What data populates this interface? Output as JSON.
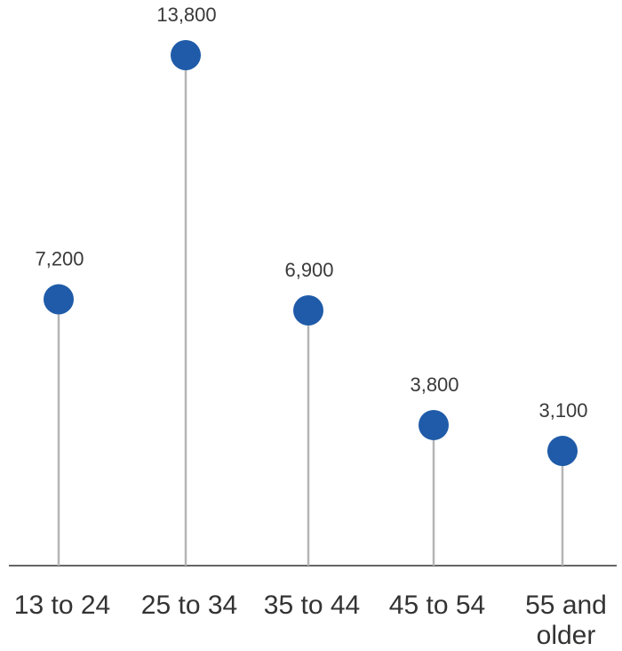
{
  "chart_data": {
    "type": "lollipop",
    "categories": [
      "13 to 24",
      "25 to 34",
      "35 to 44",
      "45 to 54",
      "55 and older"
    ],
    "category_label_lines": [
      [
        "13 to 24"
      ],
      [
        "25 to 34"
      ],
      [
        "35 to 44"
      ],
      [
        "45 to 54"
      ],
      [
        "55 and",
        "older"
      ]
    ],
    "values": [
      7200,
      13800,
      6900,
      3800,
      3100
    ],
    "value_labels": [
      "7,200",
      "13,800",
      "6,900",
      "3,800",
      "3,100"
    ],
    "title": "",
    "xlabel": "",
    "ylabel": "",
    "ylim": [
      0,
      16000
    ],
    "grid": false,
    "legend": "none",
    "colors": {
      "marker": "#1f5ba8",
      "stem": "#b5b5b5",
      "baseline": "#333333",
      "label_text": "#3a3a3a",
      "category_text": "#333333"
    }
  }
}
